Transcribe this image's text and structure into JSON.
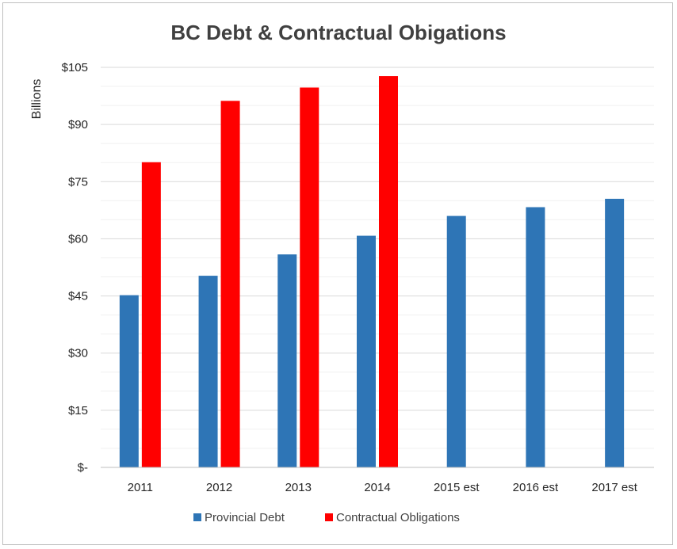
{
  "chart_data": {
    "type": "bar",
    "title": "BC Debt & Contractual Obigations",
    "xlabel": "",
    "ylabel": "Billions",
    "categories": [
      "2011",
      "2012",
      "2013",
      "2014",
      "2015 est",
      "2016 est",
      "2017 est"
    ],
    "series": [
      {
        "name": "Provincial Debt",
        "color": "#2e75b6",
        "values": [
          45.2,
          50.3,
          55.9,
          60.8,
          66.0,
          68.3,
          70.5
        ]
      },
      {
        "name": "Contractual Obligations",
        "color": "#ff0000",
        "values": [
          80.1,
          96.2,
          99.7,
          102.7,
          null,
          null,
          null
        ]
      }
    ],
    "ylim": [
      0,
      105
    ],
    "yticks": [
      0,
      15,
      30,
      45,
      60,
      75,
      90,
      105
    ],
    "ytick_labels": [
      "$-",
      "$15",
      "$30",
      "$45",
      "$60",
      "$75",
      "$90",
      "$105"
    ],
    "grid": true,
    "legend_position": "bottom"
  }
}
